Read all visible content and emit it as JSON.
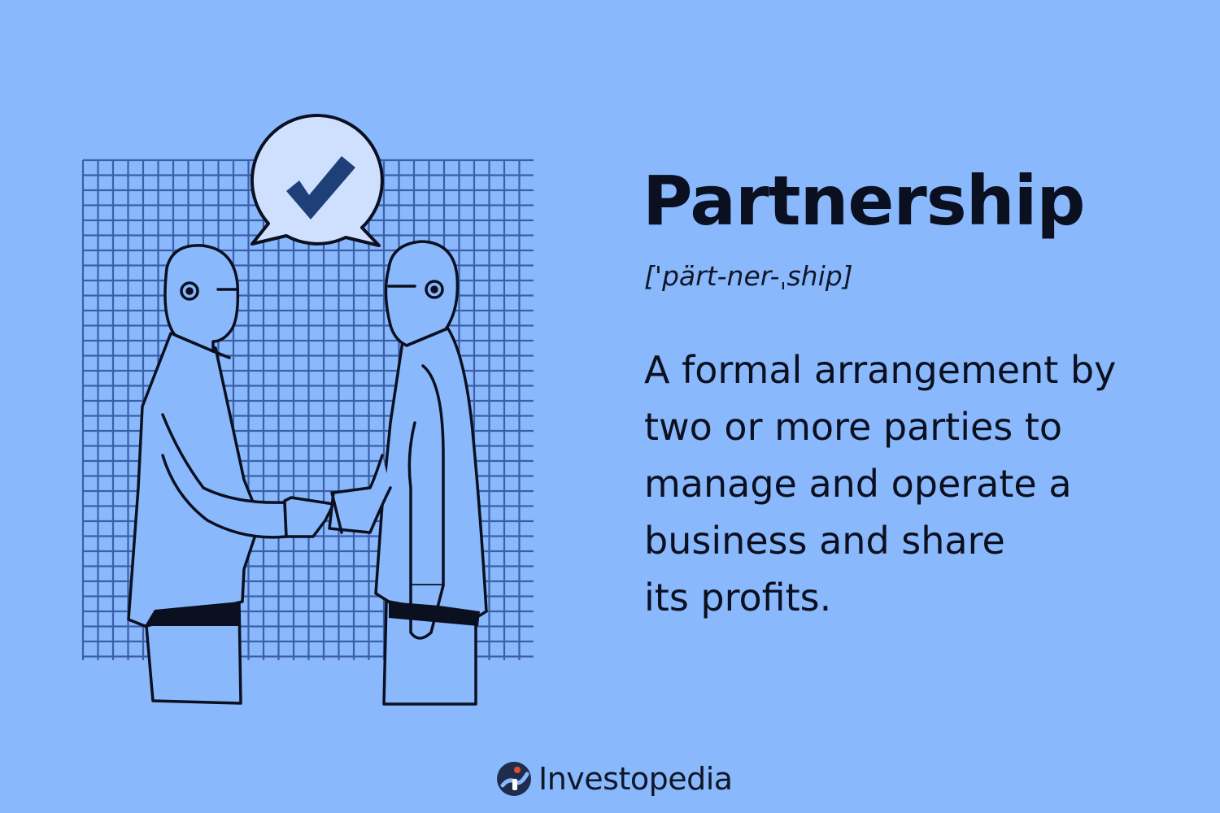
{
  "definition_card": {
    "term": "Partnership",
    "pronunciation": "['pärt-ner-ˌship]",
    "definition_lines": [
      "A formal arrangement by",
      "two or more parties to",
      "manage and operate a",
      "business and share",
      "its profits."
    ]
  },
  "illustration": {
    "subject": "two-people-shaking-hands",
    "bubble_icon": "checkmark-icon"
  },
  "brand": {
    "name": "Investopedia",
    "logo_icon": "investopedia-logo-icon"
  },
  "colors": {
    "background": "#8ab8fc",
    "ink": "#0a1020",
    "grid": "#3a5fa8",
    "bubble": "#cfe0ff",
    "check": "#1f3f78"
  }
}
